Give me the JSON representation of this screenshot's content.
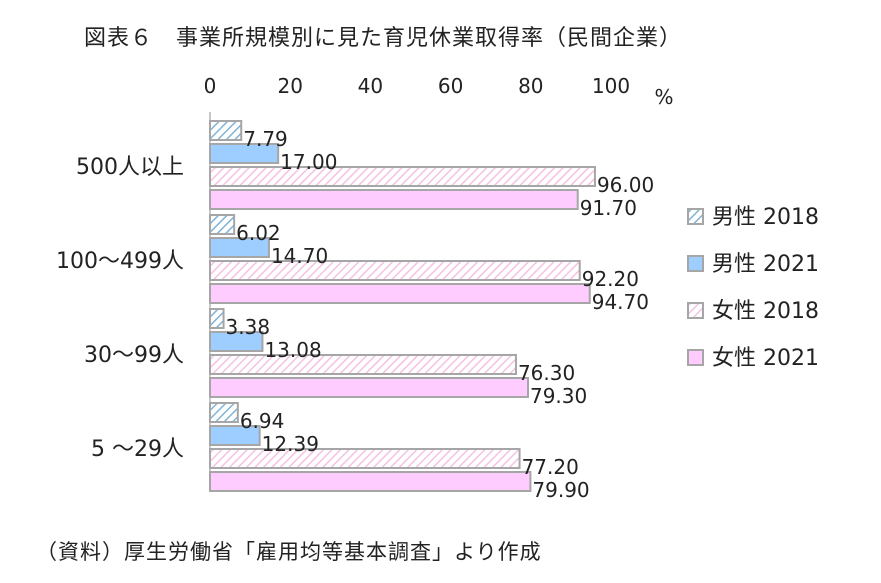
{
  "title": "図表６　事業所規模別に見た育児休業取得率（民間企業）",
  "source": "（資料）厚生労働省「雇用均等基本調査」より作成",
  "colors": {
    "male2018": "#9ecbe3",
    "male2021": "#9ecdff",
    "female2018": "#f4b6e0",
    "female2021": "#ffccff",
    "border": "#a6a6a6"
  },
  "chart_data": {
    "type": "bar",
    "orientation": "horizontal",
    "unit": "%",
    "xlim": [
      0,
      100
    ],
    "xticks": [
      "0",
      "20",
      "40",
      "60",
      "80",
      "100"
    ],
    "categories": [
      "500人以上",
      "100～499人",
      "30～99人",
      "5 ～29人"
    ],
    "series": [
      {
        "name": "男性 2018",
        "values": [
          7.79,
          6.02,
          3.38,
          6.94
        ],
        "labels": [
          "7.79",
          "6.02",
          "3.38",
          "6.94"
        ],
        "pattern": "diagonal-hatch-blue"
      },
      {
        "name": "男性 2021",
        "values": [
          17.0,
          14.7,
          13.08,
          12.39
        ],
        "labels": [
          "17.00",
          "14.70",
          "13.08",
          "12.39"
        ],
        "pattern": "solid-blue"
      },
      {
        "name": "女性 2018",
        "values": [
          96.0,
          92.2,
          76.3,
          77.2
        ],
        "labels": [
          "96.00",
          "92.20",
          "76.30",
          "77.20"
        ],
        "pattern": "diagonal-hatch-pink"
      },
      {
        "name": "女性 2021",
        "values": [
          91.7,
          94.7,
          79.3,
          79.9
        ],
        "labels": [
          "91.70",
          "94.70",
          "79.30",
          "79.90"
        ],
        "pattern": "solid-pink"
      }
    ],
    "legend_position": "right"
  }
}
